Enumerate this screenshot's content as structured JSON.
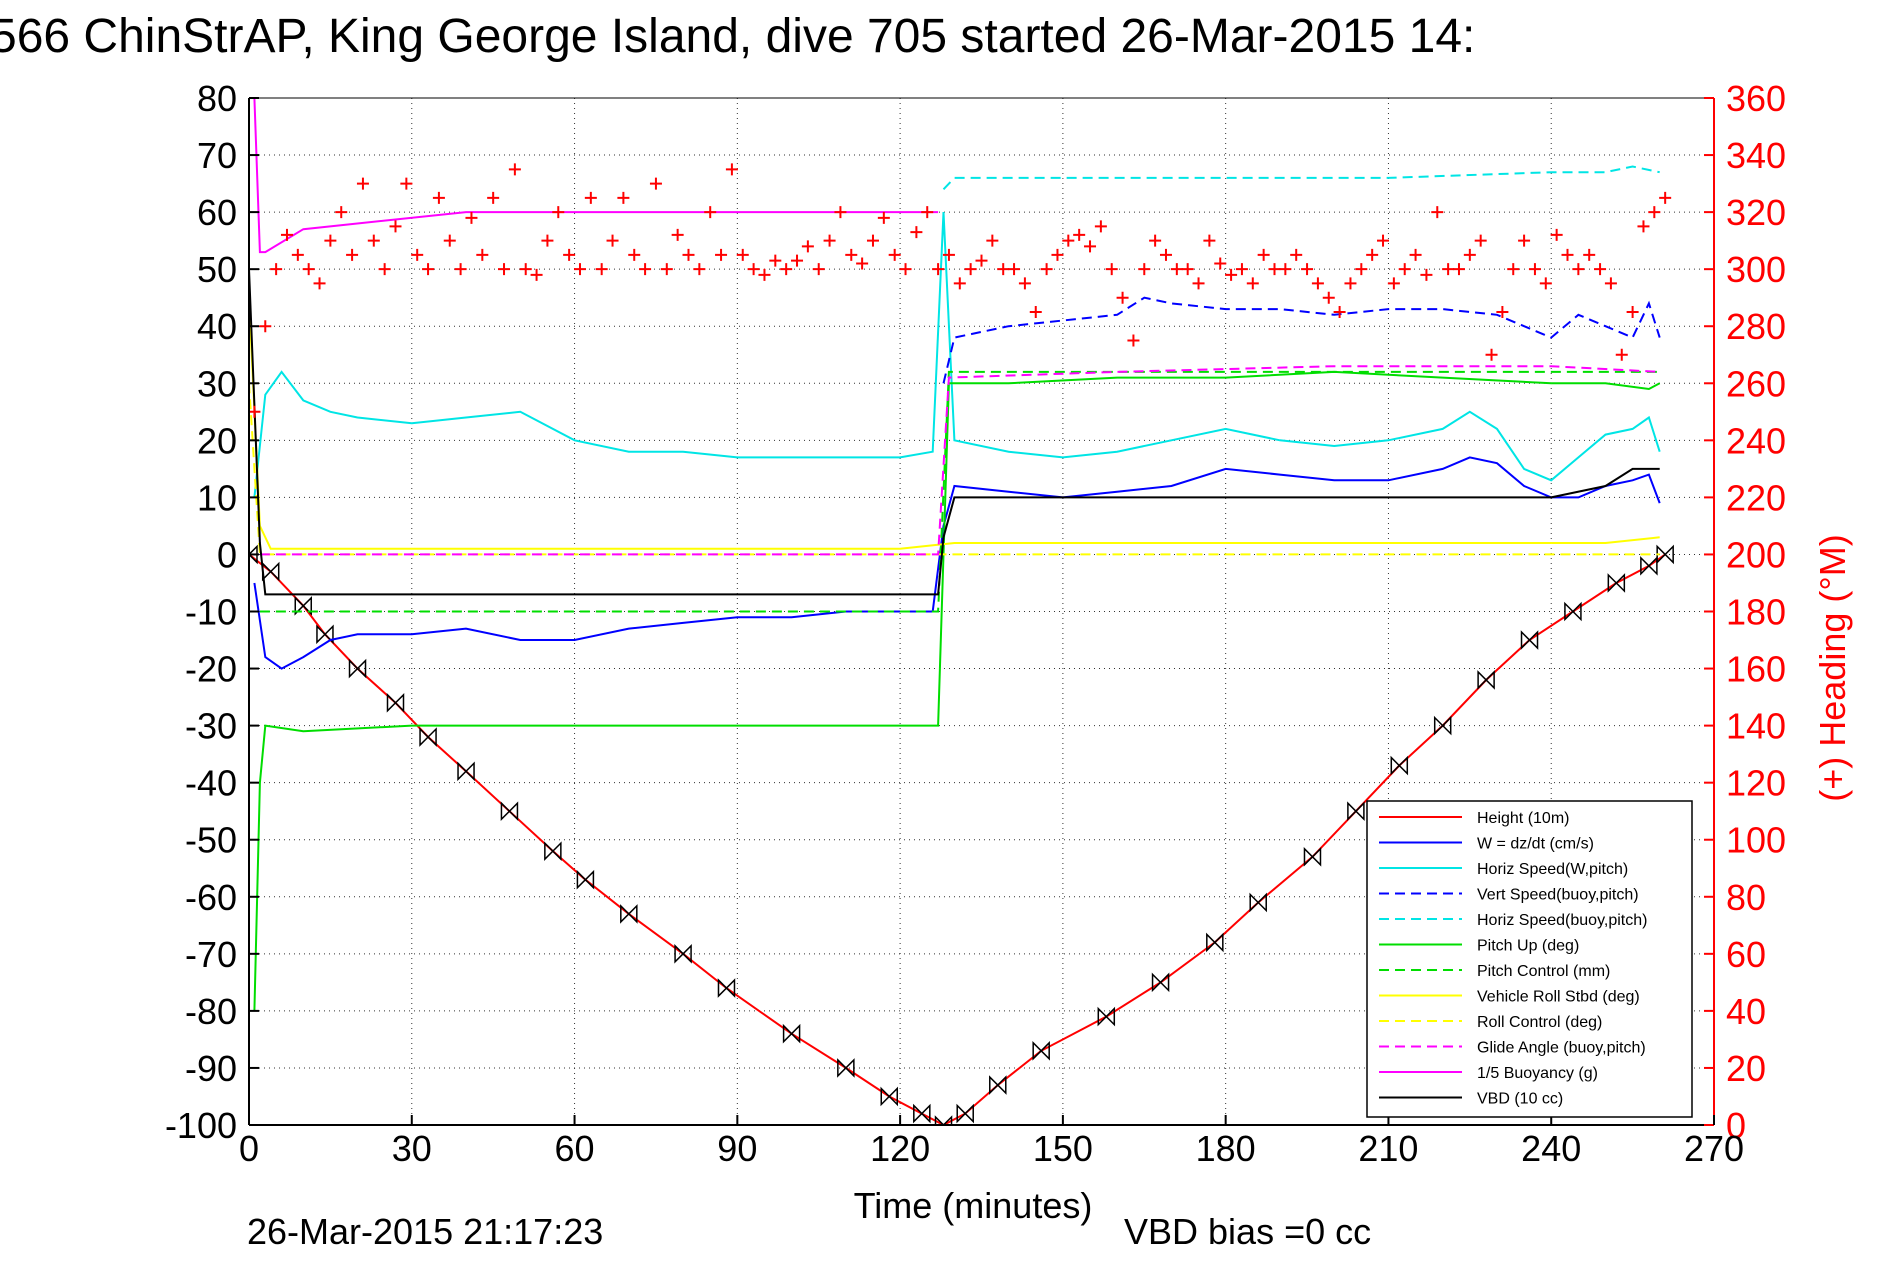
{
  "chart_data": {
    "type": "line",
    "title": "566 ChinStrAP, King George Island, dive 705 started 26-Mar-2015 14:",
    "xlabel": "Time (minutes)",
    "ylabel_left": "",
    "ylabel_right": "(+) Heading (°M)",
    "footer_left": "26-Mar-2015 21:17:23",
    "footer_right": "VBD bias =0 cc",
    "xlim": [
      0,
      270
    ],
    "ylim_left": [
      -100,
      80
    ],
    "ylim_right": [
      0,
      360
    ],
    "x_ticks": [
      0,
      30,
      60,
      90,
      120,
      150,
      180,
      210,
      240,
      270
    ],
    "y_ticks_left": [
      80,
      70,
      60,
      50,
      40,
      30,
      20,
      10,
      0,
      -10,
      -20,
      -30,
      -40,
      -50,
      -60,
      -70,
      -80,
      -90,
      -100
    ],
    "y_ticks_right": [
      360,
      340,
      320,
      300,
      280,
      260,
      240,
      220,
      200,
      180,
      160,
      140,
      120,
      100,
      80,
      60,
      40,
      20,
      0
    ],
    "grid": true,
    "legend_position": "bottom-right",
    "colors": {
      "red": "#ff0000",
      "blue": "#0000ff",
      "cyan": "#00e5e5",
      "green": "#00dd00",
      "yellow": "#ffff00",
      "magenta": "#ff00ff",
      "black": "#000000"
    },
    "series": [
      {
        "name": "Height (10m)",
        "color": "#ff0000",
        "style": "solid",
        "marker": "bowtie",
        "x": [
          0,
          4,
          10,
          14,
          20,
          27,
          33,
          40,
          48,
          56,
          62,
          70,
          80,
          88,
          100,
          110,
          118,
          124,
          128,
          132,
          138,
          146,
          158,
          168,
          178,
          186,
          196,
          204,
          212,
          220,
          228,
          236,
          244,
          252,
          258,
          261
        ],
        "y": [
          0,
          -3,
          -9,
          -14,
          -20,
          -26,
          -32,
          -38,
          -45,
          -52,
          -57,
          -63,
          -70,
          -76,
          -84,
          -90,
          -95,
          -98,
          -100,
          -98,
          -93,
          -87,
          -81,
          -75,
          -68,
          -61,
          -53,
          -45,
          -37,
          -30,
          -22,
          -15,
          -10,
          -5,
          -2,
          0
        ]
      },
      {
        "name": "W = dz/dt (cm/s)",
        "color": "#0000ff",
        "style": "solid",
        "x": [
          1,
          3,
          6,
          10,
          15,
          20,
          30,
          40,
          50,
          60,
          70,
          80,
          90,
          100,
          110,
          120,
          126,
          128,
          130,
          140,
          150,
          160,
          170,
          180,
          190,
          200,
          210,
          220,
          225,
          230,
          235,
          240,
          245,
          250,
          255,
          258,
          260
        ],
        "y": [
          -5,
          -18,
          -20,
          -18,
          -15,
          -14,
          -14,
          -13,
          -15,
          -15,
          -13,
          -12,
          -11,
          -11,
          -10,
          -10,
          -10,
          5,
          12,
          11,
          10,
          11,
          12,
          15,
          14,
          13,
          13,
          15,
          17,
          16,
          12,
          10,
          10,
          12,
          13,
          14,
          9
        ]
      },
      {
        "name": "Horiz Speed(W,pitch)",
        "color": "#00e5e5",
        "style": "solid",
        "x": [
          1,
          3,
          6,
          10,
          15,
          20,
          30,
          40,
          50,
          60,
          70,
          80,
          90,
          100,
          110,
          120,
          126,
          128,
          130,
          140,
          150,
          160,
          170,
          180,
          190,
          200,
          210,
          220,
          225,
          230,
          235,
          240,
          245,
          250,
          255,
          258,
          260
        ],
        "y": [
          10,
          28,
          32,
          27,
          25,
          24,
          23,
          24,
          25,
          20,
          18,
          18,
          17,
          17,
          17,
          17,
          18,
          60,
          20,
          18,
          17,
          18,
          20,
          22,
          20,
          19,
          20,
          22,
          25,
          22,
          15,
          13,
          17,
          21,
          22,
          24,
          18
        ]
      },
      {
        "name": "Vert Speed(buoy,pitch)",
        "color": "#0000ff",
        "style": "dashed",
        "x": [
          128,
          130,
          140,
          150,
          160,
          165,
          170,
          180,
          190,
          200,
          210,
          220,
          230,
          235,
          240,
          245,
          250,
          255,
          258,
          260
        ],
        "y": [
          30,
          38,
          40,
          41,
          42,
          45,
          44,
          43,
          43,
          42,
          43,
          43,
          42,
          40,
          38,
          42,
          40,
          38,
          44,
          38
        ]
      },
      {
        "name": "Horiz Speed(buoy,pitch)",
        "color": "#00e5e5",
        "style": "dashed",
        "x": [
          128,
          130,
          150,
          180,
          210,
          240,
          250,
          255,
          260
        ],
        "y": [
          64,
          66,
          66,
          66,
          66,
          67,
          67,
          68,
          67
        ]
      },
      {
        "name": "Pitch Up (deg)",
        "color": "#00dd00",
        "style": "solid",
        "x": [
          1,
          2,
          3,
          10,
          30,
          60,
          90,
          120,
          127,
          129,
          140,
          160,
          180,
          200,
          220,
          240,
          250,
          258,
          260
        ],
        "y": [
          -80,
          -40,
          -30,
          -31,
          -30,
          -30,
          -30,
          -30,
          -30,
          30,
          30,
          31,
          31,
          32,
          31,
          30,
          30,
          29,
          30
        ]
      },
      {
        "name": "Pitch Control (mm)",
        "color": "#00dd00",
        "style": "dashed",
        "x": [
          2,
          10,
          127,
          129,
          260
        ],
        "y": [
          -10,
          -10,
          -10,
          32,
          32
        ]
      },
      {
        "name": "Vehicle Roll Stbd (deg)",
        "color": "#ffff00",
        "style": "solid",
        "x": [
          0,
          2,
          4,
          10,
          30,
          60,
          90,
          120,
          130,
          160,
          190,
          220,
          250,
          260
        ],
        "y": [
          45,
          5,
          1,
          1,
          1,
          1,
          1,
          1,
          2,
          2,
          2,
          2,
          2,
          3
        ]
      },
      {
        "name": "Roll Control (deg)",
        "color": "#ffff00",
        "style": "dashed",
        "x": [
          0,
          2,
          260
        ],
        "y": [
          30,
          0,
          0
        ]
      },
      {
        "name": "Glide Angle (buoy,pitch)",
        "color": "#ff00ff",
        "style": "dashed",
        "x": [
          2,
          127,
          129,
          160,
          200,
          240,
          260
        ],
        "y": [
          0,
          0,
          31,
          32,
          33,
          33,
          32
        ]
      },
      {
        "name": "1/5 Buoyancy (g)",
        "color": "#ff00ff",
        "style": "solid",
        "x": [
          1,
          2,
          3,
          10,
          40,
          80,
          110,
          127
        ],
        "y": [
          80,
          53,
          53,
          57,
          60,
          60,
          60,
          60
        ]
      },
      {
        "name": "VBD (10 cc)",
        "color": "#000000",
        "style": "solid",
        "x": [
          0,
          2,
          3,
          127,
          128,
          130,
          240,
          250,
          255,
          260
        ],
        "y": [
          50,
          2,
          -7,
          -7,
          3,
          10,
          10,
          12,
          15,
          15
        ]
      }
    ],
    "heading_series": {
      "axis": "right",
      "color": "#ff0000",
      "marker": "+",
      "x": [
        1,
        3,
        5,
        7,
        9,
        11,
        13,
        15,
        17,
        19,
        21,
        23,
        25,
        27,
        29,
        31,
        33,
        35,
        37,
        39,
        41,
        43,
        45,
        47,
        49,
        51,
        53,
        55,
        57,
        59,
        61,
        63,
        65,
        67,
        69,
        71,
        73,
        75,
        77,
        79,
        81,
        83,
        85,
        87,
        89,
        91,
        93,
        95,
        97,
        99,
        101,
        103,
        105,
        107,
        109,
        111,
        113,
        115,
        117,
        119,
        121,
        123,
        125,
        127,
        129,
        131,
        133,
        135,
        137,
        139,
        141,
        143,
        145,
        147,
        149,
        151,
        153,
        155,
        157,
        159,
        161,
        163,
        165,
        167,
        169,
        171,
        173,
        175,
        177,
        179,
        181,
        183,
        185,
        187,
        189,
        191,
        193,
        195,
        197,
        199,
        201,
        203,
        205,
        207,
        209,
        211,
        213,
        215,
        217,
        219,
        221,
        223,
        225,
        227,
        229,
        231,
        233,
        235,
        237,
        239,
        241,
        243,
        245,
        247,
        249,
        251,
        253,
        255,
        257,
        259,
        261
      ],
      "y": [
        250,
        280,
        300,
        312,
        305,
        300,
        295,
        310,
        320,
        305,
        330,
        310,
        300,
        315,
        330,
        305,
        300,
        325,
        310,
        300,
        318,
        305,
        325,
        300,
        335,
        300,
        298,
        310,
        320,
        305,
        300,
        325,
        300,
        310,
        325,
        305,
        300,
        330,
        300,
        312,
        305,
        300,
        320,
        305,
        335,
        305,
        300,
        298,
        303,
        300,
        303,
        308,
        300,
        310,
        320,
        305,
        302,
        310,
        318,
        305,
        300,
        313,
        320,
        300,
        305,
        295,
        300,
        303,
        310,
        300,
        300,
        295,
        285,
        300,
        305,
        310,
        312,
        308,
        315,
        300,
        290,
        275,
        300,
        310,
        305,
        300,
        300,
        295,
        310,
        302,
        298,
        300,
        295,
        305,
        300,
        300,
        305,
        300,
        295,
        290,
        285,
        295,
        300,
        305,
        310,
        295,
        300,
        305,
        298,
        320,
        300,
        300,
        305,
        310,
        270,
        285,
        300,
        310,
        300,
        295,
        312,
        305,
        300,
        305,
        300,
        295,
        270,
        285,
        315,
        320,
        325
      ]
    }
  }
}
